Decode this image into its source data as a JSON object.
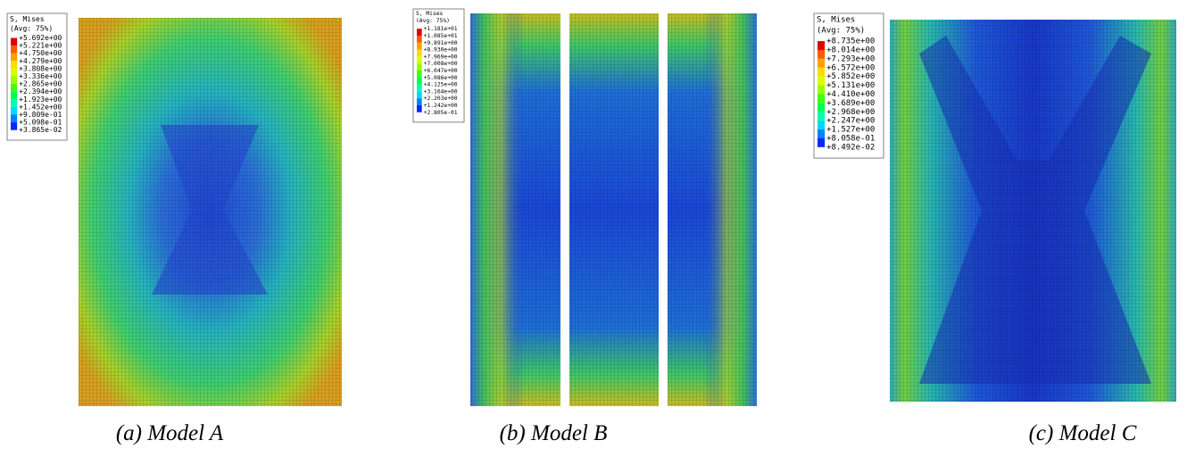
{
  "panels": [
    {
      "legend": {
        "title": "S, Mises",
        "subtitle": "(Avg: 75%)",
        "levels": [
          "+5.692e+00",
          "+5.221e+00",
          "+4.750e+00",
          "+4.279e+00",
          "+3.808e+00",
          "+3.336e+00",
          "+2.865e+00",
          "+2.394e+00",
          "+1.923e+00",
          "+1.452e+00",
          "+9.809e-01",
          "+5.098e-01",
          "+3.865e-02"
        ]
      },
      "caption": "(a) Model A"
    },
    {
      "legend": {
        "title": "S, Mises",
        "subtitle": "(Avg: 75%)",
        "levels": [
          "+1.181e+01",
          "+1.085e+01",
          "+9.891e+00",
          "+8.930e+00",
          "+7.969e+00",
          "+7.008e+00",
          "+6.047e+00",
          "+5.086e+00",
          "+4.125e+00",
          "+3.164e+00",
          "+2.203e+00",
          "+1.242e+00",
          "+2.805e-01"
        ]
      },
      "caption": "(b) Model B"
    },
    {
      "legend": {
        "title": "S, Mises",
        "subtitle": "(Avg: 75%)",
        "levels": [
          "+8.735e+00",
          "+8.014e+00",
          "+7.293e+00",
          "+6.572e+00",
          "+5.852e+00",
          "+5.131e+00",
          "+4.410e+00",
          "+3.689e+00",
          "+2.968e+00",
          "+2.247e+00",
          "+1.527e+00",
          "+8.058e-01",
          "+8.492e-02"
        ]
      },
      "caption": "(c) Model C"
    }
  ]
}
